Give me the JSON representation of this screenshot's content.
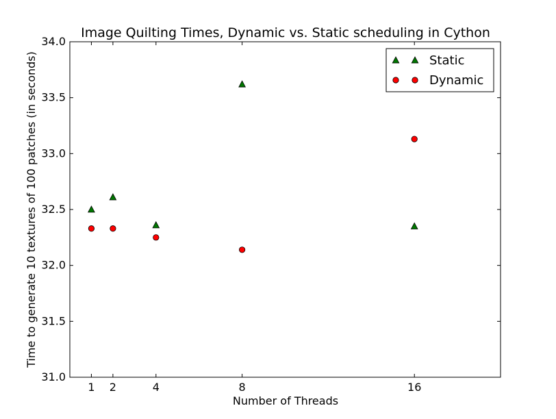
{
  "chart_data": {
    "type": "scatter",
    "title": "Image Quilting Times, Dynamic vs. Static scheduling in Cython",
    "xlabel": "Number of Threads",
    "ylabel": "Time to generate 10 textures of 100 patches (in seconds)",
    "xlim": [
      0,
      20
    ],
    "ylim": [
      31.0,
      34.0
    ],
    "xticks": [
      1,
      2,
      4,
      8,
      16
    ],
    "yticks": [
      31.0,
      31.5,
      32.0,
      32.5,
      33.0,
      33.5,
      34.0
    ],
    "ytick_labels": [
      "31.0",
      "31.5",
      "32.0",
      "32.5",
      "33.0",
      "33.5",
      "34.0"
    ],
    "grid": false,
    "legend_position": "top-right",
    "series": [
      {
        "name": "Static",
        "marker": "triangle",
        "color": "#007700",
        "points": [
          {
            "x": 1,
            "y": 32.5
          },
          {
            "x": 2,
            "y": 32.61
          },
          {
            "x": 4,
            "y": 32.36
          },
          {
            "x": 8,
            "y": 33.62
          },
          {
            "x": 16,
            "y": 32.35
          }
        ]
      },
      {
        "name": "Dynamic",
        "marker": "circle",
        "color": "#ff0000",
        "points": [
          {
            "x": 1,
            "y": 32.33
          },
          {
            "x": 2,
            "y": 32.33
          },
          {
            "x": 4,
            "y": 32.25
          },
          {
            "x": 8,
            "y": 32.14
          },
          {
            "x": 16,
            "y": 33.13
          }
        ]
      }
    ]
  }
}
